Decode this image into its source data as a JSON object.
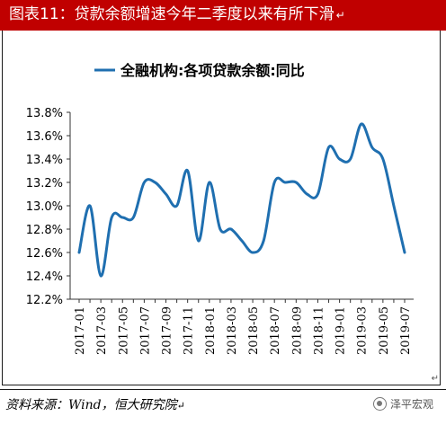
{
  "header": {
    "figure_title": "图表11：贷款余额增速今年二季度以来有所下滑",
    "paragraph_mark": "↵"
  },
  "footer": {
    "source": "资料来源：Wind，恒大研究院",
    "paragraph_mark": "↵",
    "watermark": "泽平宏观",
    "end_mark": "↵"
  },
  "colors": {
    "title_bar": "#c00000",
    "series": "#1f6fb0"
  },
  "chart_data": {
    "type": "line",
    "title": "",
    "xlabel": "",
    "ylabel": "",
    "series": [
      {
        "name": "全融机构:各项贷款余额:同比",
        "x": [
          "2017-01",
          "2017-02",
          "2017-03",
          "2017-04",
          "2017-05",
          "2017-06",
          "2017-07",
          "2017-08",
          "2017-09",
          "2017-10",
          "2017-11",
          "2017-12",
          "2018-01",
          "2018-02",
          "2018-03",
          "2018-04",
          "2018-05",
          "2018-06",
          "2018-07",
          "2018-08",
          "2018-09",
          "2018-10",
          "2018-11",
          "2018-12",
          "2019-01",
          "2019-02",
          "2019-03",
          "2019-04",
          "2019-05",
          "2019-06",
          "2019-07"
        ],
        "y": [
          12.6,
          13.0,
          12.4,
          12.9,
          12.9,
          12.9,
          13.2,
          13.2,
          13.1,
          13.0,
          13.3,
          12.7,
          13.2,
          12.8,
          12.8,
          12.7,
          12.6,
          12.7,
          13.2,
          13.2,
          13.2,
          13.1,
          13.1,
          13.5,
          13.4,
          13.4,
          13.7,
          13.5,
          13.4,
          13.0,
          12.6
        ]
      }
    ],
    "x_tick_labels": [
      "2017-01",
      "2017-03",
      "2017-05",
      "2017-07",
      "2017-09",
      "2017-11",
      "2018-01",
      "2018-03",
      "2018-05",
      "2018-07",
      "2018-09",
      "2018-11",
      "2019-01",
      "2019-03",
      "2019-05",
      "2019-07"
    ],
    "y_ticks": [
      12.2,
      12.4,
      12.6,
      12.8,
      13.0,
      13.2,
      13.4,
      13.6,
      13.8
    ],
    "y_tick_labels": [
      "12.2%",
      "12.4%",
      "12.6%",
      "12.8%",
      "13.0%",
      "13.2%",
      "13.4%",
      "13.6%",
      "13.8%"
    ],
    "ylim": [
      12.2,
      13.8
    ],
    "grid": false,
    "legend_position": "top"
  }
}
